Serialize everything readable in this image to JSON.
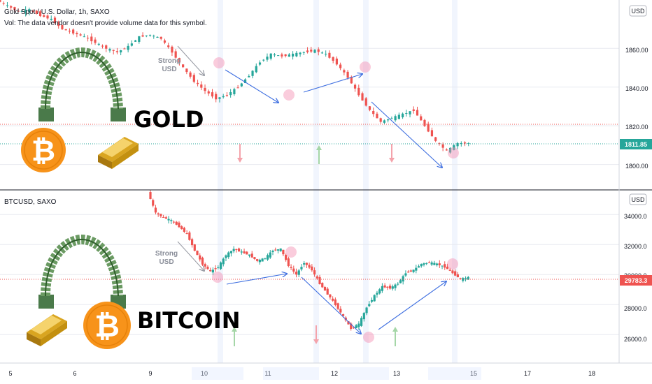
{
  "colors": {
    "up": "#26a69a",
    "down": "#ef5350",
    "arrow": "#3d6ee0",
    "grid": "#e8eaf0"
  },
  "panes": {
    "gold": {
      "title": "Gold Spot / U.S. Dollar, 1h, SAXO",
      "vol_note": "Vol: The data vendor doesn't provide volume data for this symbol.",
      "currency": "USD",
      "last_price": "1811.85",
      "big_label": "GOLD",
      "annotation_line1": "Strong",
      "annotation_line2": "USD",
      "y_ticks": [
        "1860.00",
        "1840.00",
        "1820.00",
        "1800.00"
      ]
    },
    "btc": {
      "title": "BTCUSD, SAXO",
      "currency": "USD",
      "last_price": "29783.3",
      "big_label": "BITCOIN",
      "annotation_line1": "Strong",
      "annotation_line2": "USD",
      "y_ticks": [
        "34000.0",
        "32000.0",
        "30000.0",
        "28000.0",
        "26000.0"
      ]
    }
  },
  "x_ticks": [
    "5",
    "6",
    "9",
    "10",
    "11",
    "12",
    "13",
    "15",
    "17",
    "18"
  ],
  "chart_data": [
    {
      "type": "line",
      "series": [
        {
          "values": [
            1885,
            1882,
            1879,
            1880,
            1877,
            1875,
            1870,
            1868,
            1866,
            1863,
            1860,
            1858,
            1861,
            1866,
            1867,
            1865,
            1858,
            1850,
            1843,
            1838,
            1834,
            1836,
            1840,
            1846,
            1853,
            1857,
            1856,
            1857,
            1858,
            1859,
            1857,
            1852,
            1845,
            1836,
            1828,
            1822,
            1824,
            1826,
            1828,
            1820,
            1812,
            1807,
            1811,
            1811
          ]
        }
      ],
      "ylim": [
        1793,
        1885
      ],
      "yticks": [
        1860,
        1840,
        1820,
        1800
      ],
      "last_value": 1811.85
    },
    {
      "type": "line",
      "series": [
        {
          "values": [
            35500,
            34100,
            33800,
            33600,
            33200,
            32700,
            31600,
            30700,
            30200,
            30500,
            31300,
            31700,
            31500,
            31300,
            30900,
            31100,
            31600,
            31700,
            30600,
            30000,
            30800,
            30300,
            29400,
            28700,
            28000,
            27200,
            26400,
            26700,
            27800,
            28600,
            29200,
            29100,
            29400,
            30100,
            30300,
            30700,
            30800,
            30700,
            30500,
            30100,
            29700,
            29800
          ]
        }
      ],
      "ylim": [
        24800,
        35500
      ],
      "yticks": [
        34000,
        32000,
        30000,
        28000,
        26000
      ],
      "last_value": 29783.3
    }
  ]
}
